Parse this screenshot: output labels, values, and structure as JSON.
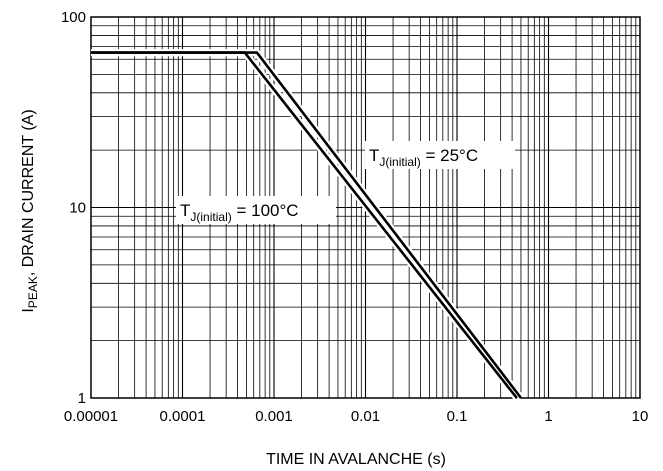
{
  "chart_data": {
    "type": "line",
    "title": "",
    "xlabel": "TIME IN AVALANCHE (s)",
    "ylabel_main": "I",
    "ylabel_sub": "PEAK",
    "ylabel_rest": ", DRAIN CURRENT (A)",
    "x_scale": "log",
    "y_scale": "log",
    "xlim": [
      1e-05,
      10
    ],
    "ylim": [
      1,
      100
    ],
    "grid": true,
    "x_ticks": [
      "0.00001",
      "0.0001",
      "0.001",
      "0.01",
      "0.1",
      "1",
      "10"
    ],
    "y_ticks": [
      "1",
      "10",
      "100"
    ],
    "series": [
      {
        "name": "T_J(initial) = 25°C",
        "label_main": "T",
        "label_sub": "J(initial)",
        "label_rest": " = 25°C",
        "x": [
          1e-05,
          0.00065,
          0.5
        ],
        "y": [
          65,
          65,
          1
        ]
      },
      {
        "name": "T_J(initial) = 100°C",
        "label_main": "T",
        "label_sub": "J(initial)",
        "label_rest": " = 100°C",
        "x": [
          1e-05,
          0.00048,
          0.45
        ],
        "y": [
          65,
          65,
          1
        ]
      }
    ]
  }
}
